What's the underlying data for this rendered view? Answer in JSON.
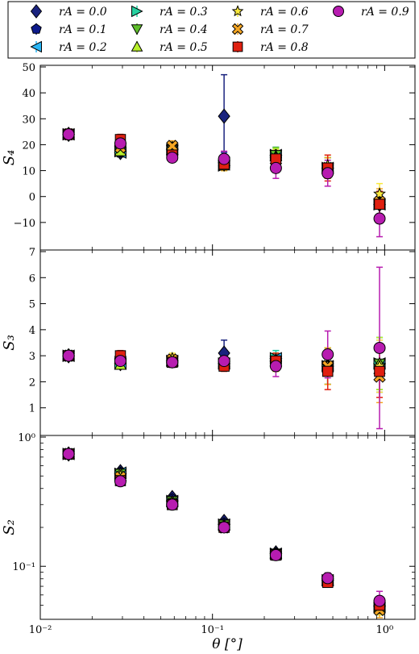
{
  "chart_data": {
    "type": "scatter",
    "shared_x": {
      "label": "θ [°]",
      "scale": "log",
      "lim": [
        0.01,
        1.5
      ],
      "ticks": [
        0.01,
        0.1,
        1
      ],
      "tick_labels": [
        "10⁻²",
        "10⁻¹",
        "10⁰"
      ]
    },
    "x": [
      0.0146,
      0.0292,
      0.0584,
      0.1168,
      0.2335,
      0.467,
      0.934
    ],
    "legend": {
      "placement": "top",
      "entries": [
        {
          "label": "r_A = 0.0",
          "color": "#1a237e",
          "marker": "diamond"
        },
        {
          "label": "r_A = 0.1",
          "color": "#0d1a8c",
          "marker": "pentagon"
        },
        {
          "label": "r_A = 0.2",
          "color": "#29b6f6",
          "marker": "triangle-left"
        },
        {
          "label": "r_A = 0.3",
          "color": "#26d0a0",
          "marker": "triangle-right"
        },
        {
          "label": "r_A = 0.4",
          "color": "#5fbf2a",
          "marker": "triangle-down"
        },
        {
          "label": "r_A = 0.5",
          "color": "#b8f02a",
          "marker": "triangle-up"
        },
        {
          "label": "r_A = 0.6",
          "color": "#f9e83c",
          "marker": "star"
        },
        {
          "label": "r_A = 0.7",
          "color": "#f5a623",
          "marker": "x-box"
        },
        {
          "label": "r_A = 0.8",
          "color": "#e02010",
          "marker": "square"
        },
        {
          "label": "r_A = 0.9",
          "color": "#b71cb0",
          "marker": "circle"
        }
      ]
    },
    "panels": [
      {
        "ylabel": "S₄",
        "yscale": "linear",
        "ylim": [
          -20,
          50
        ],
        "yticks": [
          -10,
          0,
          10,
          20,
          30,
          40,
          50
        ],
        "ytick_labels": [
          "−10",
          "0",
          "10",
          "20",
          "30",
          "40",
          "50"
        ],
        "series": [
          {
            "values": [
              24,
              17,
              18.5,
              31,
              15,
              11,
              -3
            ],
            "err": [
              2,
              1,
              1.5,
              16,
              3,
              4,
              5
            ]
          },
          {
            "values": [
              24,
              17,
              18,
              14,
              16,
              11,
              -3
            ],
            "err": [
              2,
              1,
              1.5,
              3,
              3,
              4,
              5
            ]
          },
          {
            "values": [
              24,
              17,
              18,
              13,
              16,
              11,
              -3
            ],
            "err": [
              2,
              1,
              1.5,
              2,
              3,
              4,
              5
            ]
          },
          {
            "values": [
              24,
              17.5,
              18,
              12,
              16,
              11,
              -3
            ],
            "err": [
              2,
              1,
              1.5,
              2,
              3,
              4,
              5
            ]
          },
          {
            "values": [
              24,
              17.5,
              18,
              12,
              16,
              11,
              -3
            ],
            "err": [
              2,
              1,
              1.5,
              2,
              3,
              4,
              5
            ]
          },
          {
            "values": [
              24,
              17.5,
              18,
              12,
              15.5,
              11,
              -3
            ],
            "err": [
              2,
              1,
              1.5,
              2,
              3,
              4,
              5
            ]
          },
          {
            "values": [
              24,
              19,
              19,
              13,
              15,
              12,
              1
            ],
            "err": [
              2,
              2,
              2,
              3,
              3,
              4,
              4
            ]
          },
          {
            "values": [
              24,
              19,
              19.5,
              13,
              14,
              11,
              -2
            ],
            "err": [
              2,
              2,
              2,
              3,
              3,
              4,
              5
            ]
          },
          {
            "values": [
              24,
              22,
              16,
              12.5,
              14.5,
              11,
              -3
            ],
            "err": [
              2,
              2,
              1.5,
              2,
              3,
              5,
              5
            ]
          },
          {
            "values": [
              24,
              20.5,
              15,
              14.5,
              11,
              9,
              -8.5
            ],
            "err": [
              2,
              2,
              1.5,
              3,
              4,
              5,
              7
            ]
          }
        ]
      },
      {
        "ylabel": "S₃",
        "yscale": "linear",
        "ylim": [
          0,
          7
        ],
        "yticks": [
          1,
          2,
          3,
          4,
          5,
          6,
          7
        ],
        "ytick_labels": [
          "1",
          "2",
          "3",
          "4",
          "5",
          "6",
          "7"
        ],
        "series": [
          {
            "values": [
              3.0,
              2.7,
              2.8,
              3.1,
              2.8,
              2.6,
              2.6
            ],
            "err": [
              0.1,
              0.1,
              0.15,
              0.5,
              0.3,
              0.7,
              1.0
            ]
          },
          {
            "values": [
              3.0,
              2.7,
              2.8,
              2.7,
              2.8,
              2.6,
              2.6
            ],
            "err": [
              0.1,
              0.1,
              0.15,
              0.2,
              0.3,
              0.7,
              1.0
            ]
          },
          {
            "values": [
              3.0,
              2.7,
              2.8,
              2.7,
              2.9,
              2.6,
              2.7
            ],
            "err": [
              0.1,
              0.1,
              0.15,
              0.2,
              0.3,
              0.7,
              1.0
            ]
          },
          {
            "values": [
              3.0,
              2.7,
              2.8,
              2.7,
              2.9,
              2.6,
              2.7
            ],
            "err": [
              0.1,
              0.1,
              0.15,
              0.2,
              0.3,
              0.7,
              1.0
            ]
          },
          {
            "values": [
              3.0,
              2.7,
              2.8,
              2.7,
              2.8,
              2.6,
              2.7
            ],
            "err": [
              0.1,
              0.1,
              0.15,
              0.2,
              0.3,
              0.7,
              1.0
            ]
          },
          {
            "values": [
              3.0,
              2.65,
              2.8,
              2.7,
              2.8,
              2.6,
              2.7
            ],
            "err": [
              0.1,
              0.1,
              0.15,
              0.2,
              0.3,
              0.7,
              1.0
            ]
          },
          {
            "values": [
              3.0,
              2.8,
              2.9,
              2.7,
              2.7,
              2.6,
              2.6
            ],
            "err": [
              0.1,
              0.2,
              0.2,
              0.2,
              0.3,
              0.7,
              1.0
            ]
          },
          {
            "values": [
              3.0,
              2.85,
              2.85,
              2.7,
              2.7,
              2.6,
              2.2
            ],
            "err": [
              0.1,
              0.2,
              0.2,
              0.2,
              0.3,
              0.7,
              1.0
            ]
          },
          {
            "values": [
              3.0,
              3.0,
              2.75,
              2.6,
              2.8,
              2.4,
              2.4
            ],
            "err": [
              0.1,
              0.2,
              0.2,
              0.2,
              0.3,
              0.7,
              1.0
            ]
          },
          {
            "values": [
              3.0,
              2.8,
              2.75,
              2.8,
              2.6,
              3.05,
              3.3
            ],
            "err": [
              0.1,
              0.2,
              0.2,
              0.2,
              0.4,
              0.9,
              3.1
            ]
          }
        ]
      },
      {
        "ylabel": "S₂",
        "yscale": "log",
        "ylim": [
          0.04,
          1.0
        ],
        "yticks": [
          0.1,
          1.0
        ],
        "ytick_labels": [
          "10⁻¹",
          "10⁰"
        ],
        "series": [
          {
            "values": [
              0.74,
              0.54,
              0.34,
              0.222,
              0.127,
              0.078,
              0.049
            ],
            "err": [
              0.01,
              0.01,
              0.01,
              0.005,
              0.004,
              0.004,
              0.006
            ]
          },
          {
            "values": [
              0.74,
              0.53,
              0.33,
              0.215,
              0.126,
              0.078,
              0.049
            ],
            "err": [
              0.01,
              0.01,
              0.01,
              0.005,
              0.004,
              0.004,
              0.006
            ]
          },
          {
            "values": [
              0.74,
              0.53,
              0.32,
              0.21,
              0.125,
              0.078,
              0.049
            ],
            "err": [
              0.01,
              0.01,
              0.01,
              0.005,
              0.004,
              0.004,
              0.006
            ]
          },
          {
            "values": [
              0.74,
              0.52,
              0.32,
              0.21,
              0.125,
              0.078,
              0.049
            ],
            "err": [
              0.01,
              0.01,
              0.01,
              0.005,
              0.004,
              0.004,
              0.006
            ]
          },
          {
            "values": [
              0.74,
              0.52,
              0.32,
              0.21,
              0.125,
              0.077,
              0.048
            ],
            "err": [
              0.01,
              0.01,
              0.01,
              0.005,
              0.004,
              0.004,
              0.006
            ]
          },
          {
            "values": [
              0.74,
              0.52,
              0.32,
              0.21,
              0.125,
              0.077,
              0.048
            ],
            "err": [
              0.01,
              0.01,
              0.01,
              0.005,
              0.004,
              0.004,
              0.006
            ]
          },
          {
            "values": [
              0.74,
              0.5,
              0.31,
              0.205,
              0.124,
              0.077,
              0.048
            ],
            "err": [
              0.01,
              0.01,
              0.01,
              0.005,
              0.004,
              0.004,
              0.006
            ]
          },
          {
            "values": [
              0.74,
              0.49,
              0.305,
              0.2,
              0.123,
              0.076,
              0.046
            ],
            "err": [
              0.01,
              0.01,
              0.01,
              0.005,
              0.004,
              0.004,
              0.006
            ]
          },
          {
            "values": [
              0.74,
              0.46,
              0.3,
              0.2,
              0.122,
              0.075,
              0.05
            ],
            "err": [
              0.01,
              0.01,
              0.01,
              0.005,
              0.004,
              0.004,
              0.006
            ]
          },
          {
            "values": [
              0.74,
              0.455,
              0.3,
              0.2,
              0.122,
              0.081,
              0.054
            ],
            "err": [
              0.01,
              0.01,
              0.01,
              0.005,
              0.004,
              0.008,
              0.01
            ]
          }
        ]
      }
    ]
  }
}
